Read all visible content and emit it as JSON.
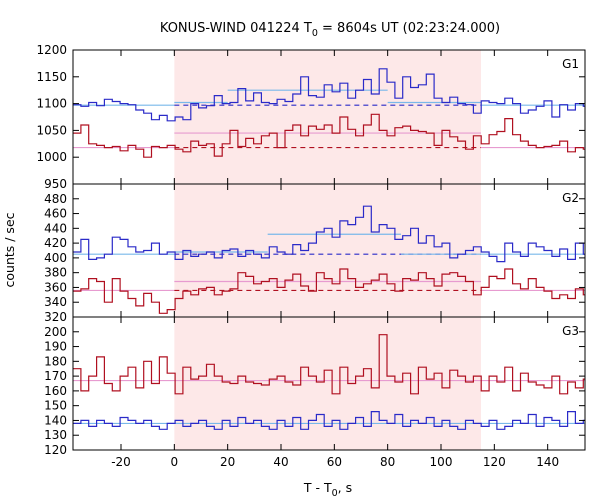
{
  "chart_data": {
    "type": "line",
    "title": "KONUS-WIND 041224 T",
    "title_sub": "0",
    "title_rest": " = 8604s UT (02:23:24.000)",
    "xlabel": "T - T",
    "xlabel_sub": "0",
    "xlabel_rest": ", s",
    "ylabel": "counts / sec",
    "xlim": [
      -38,
      154
    ],
    "xticks": [
      -20,
      0,
      20,
      40,
      60,
      80,
      100,
      120,
      140
    ],
    "bin_width": 2.944,
    "shaded_interval": [
      0,
      115
    ],
    "panels": [
      {
        "name": "G1",
        "ylim": [
          950,
          1200
        ],
        "yticks": [
          950,
          1000,
          1050,
          1100,
          1150,
          1200
        ],
        "series": [
          {
            "color": "#2a2ac8",
            "start": -38,
            "values": [
              1098,
              1095,
              1102,
              1096,
              1108,
              1104,
              1100,
              1098,
              1088,
              1082,
              1070,
              1078,
              1068,
              1075,
              1070,
              1100,
              1092,
              1096,
              1115,
              1100,
              1102,
              1128,
              1105,
              1120,
              1102,
              1100,
              1108,
              1104,
              1118,
              1150,
              1115,
              1112,
              1135,
              1122,
              1138,
              1110,
              1125,
              1145,
              1118,
              1165,
              1140,
              1110,
              1150,
              1130,
              1135,
              1155,
              1110,
              1102,
              1112,
              1100,
              1098,
              1082,
              1105,
              1102,
              1100,
              1110,
              1100,
              1082,
              1088,
              1095,
              1105,
              1075,
              1098,
              1088,
              1100,
              1095,
              1085,
              1098,
              1100,
              1068,
              1095,
              1082,
              1100,
              1104,
              1090
            ],
            "bg_level": 1097,
            "fit": [
              {
                "x0": -38,
                "x1": 0,
                "y": 1097,
                "style": "solid"
              },
              {
                "x0": 0,
                "x1": 115,
                "y": 1097,
                "style": "dashed"
              },
              {
                "x0": 115,
                "x1": 154,
                "y": 1097,
                "style": "solid"
              }
            ],
            "mean": [
              {
                "x0": 0,
                "x1": 20,
                "y": 1102
              },
              {
                "x0": 20,
                "x1": 80,
                "y": 1125
              },
              {
                "x0": 80,
                "x1": 115,
                "y": 1102
              }
            ]
          },
          {
            "color": "#b01020",
            "start": -38,
            "values": [
              1045,
              1060,
              1025,
              1022,
              1018,
              1020,
              1012,
              1022,
              1015,
              1000,
              1020,
              1018,
              1022,
              1015,
              1010,
              1030,
              1022,
              1025,
              1002,
              1025,
              1050,
              1020,
              1035,
              1025,
              1040,
              1045,
              1018,
              1050,
              1060,
              1040,
              1058,
              1052,
              1060,
              1045,
              1075,
              1052,
              1040,
              1060,
              1080,
              1050,
              1040,
              1055,
              1058,
              1050,
              1048,
              1045,
              1022,
              1050,
              1038,
              1030,
              1015,
              1040,
              1025,
              1042,
              1048,
              1072,
              1042,
              1030,
              1022,
              1018,
              1020,
              1022,
              1030,
              1010,
              1018,
              1015,
              1000,
              1020,
              1010,
              1018,
              1012,
              1000,
              1018,
              1015,
              1020
            ],
            "fit": [
              {
                "x0": -38,
                "x1": 0,
                "y": 1018,
                "style": "solid"
              },
              {
                "x0": 0,
                "x1": 115,
                "y": 1018,
                "style": "dashed"
              },
              {
                "x0": 115,
                "x1": 154,
                "y": 1018,
                "style": "solid"
              }
            ],
            "mean": [
              {
                "x0": 0,
                "x1": 115,
                "y": 1045
              }
            ]
          }
        ]
      },
      {
        "name": "G2",
        "ylim": [
          320,
          500
        ],
        "yticks": [
          320,
          340,
          360,
          380,
          400,
          420,
          440,
          460,
          480
        ],
        "series": [
          {
            "color": "#2a2ac8",
            "start": -38,
            "values": [
              408,
              425,
              398,
              400,
              405,
              428,
              425,
              415,
              408,
              410,
              420,
              405,
              408,
              398,
              410,
              402,
              405,
              408,
              400,
              410,
              412,
              402,
              410,
              405,
              400,
              415,
              408,
              405,
              418,
              410,
              420,
              435,
              440,
              428,
              450,
              445,
              455,
              470,
              435,
              445,
              440,
              425,
              430,
              440,
              420,
              430,
              415,
              420,
              400,
              405,
              410,
              415,
              408,
              402,
              395,
              420,
              408,
              402,
              420,
              415,
              410,
              402,
              412,
              398,
              420,
              405,
              418,
              400,
              415,
              402,
              410,
              400,
              398,
              405,
              410
            ],
            "fit": [
              {
                "x0": -38,
                "x1": 0,
                "y": 405,
                "style": "solid"
              },
              {
                "x0": 0,
                "x1": 115,
                "y": 405,
                "style": "dashed"
              },
              {
                "x0": 115,
                "x1": 154,
                "y": 405,
                "style": "solid"
              }
            ],
            "mean": [
              {
                "x0": 0,
                "x1": 35,
                "y": 408
              },
              {
                "x0": 35,
                "x1": 85,
                "y": 432
              },
              {
                "x0": 85,
                "x1": 115,
                "y": 405
              }
            ]
          },
          {
            "color": "#b01020",
            "start": -38,
            "values": [
              355,
              358,
              372,
              368,
              340,
              372,
              355,
              345,
              335,
              352,
              340,
              325,
              330,
              345,
              355,
              350,
              358,
              360,
              350,
              355,
              358,
              380,
              375,
              365,
              368,
              372,
              360,
              370,
              378,
              362,
              355,
              380,
              372,
              365,
              385,
              372,
              360,
              365,
              370,
              378,
              365,
              355,
              372,
              370,
              380,
              372,
              362,
              378,
              380,
              375,
              368,
              350,
              360,
              375,
              372,
              385,
              365,
              358,
              372,
              360,
              355,
              345,
              350,
              345,
              358,
              350,
              345,
              352,
              348,
              360,
              345,
              352,
              355,
              340,
              358
            ],
            "fit": [
              {
                "x0": -38,
                "x1": 0,
                "y": 356,
                "style": "solid"
              },
              {
                "x0": 0,
                "x1": 115,
                "y": 356,
                "style": "dashed"
              },
              {
                "x0": 115,
                "x1": 154,
                "y": 356,
                "style": "solid"
              }
            ],
            "mean": [
              {
                "x0": 0,
                "x1": 115,
                "y": 368
              }
            ]
          }
        ]
      },
      {
        "name": "G3",
        "ylim": [
          120,
          210
        ],
        "yticks": [
          120,
          130,
          140,
          150,
          160,
          170,
          180,
          190,
          200
        ],
        "series": [
          {
            "color": "#b01020",
            "start": -38,
            "values": [
              175,
              160,
              170,
              183,
              165,
              160,
              170,
              176,
              162,
              180,
              165,
              183,
              172,
              158,
              176,
              168,
              170,
              178,
              170,
              166,
              165,
              170,
              166,
              165,
              164,
              168,
              170,
              166,
              164,
              176,
              170,
              166,
              174,
              158,
              176,
              165,
              170,
              175,
              162,
              198,
              170,
              166,
              172,
              158,
              176,
              168,
              172,
              162,
              174,
              170,
              166,
              170,
              160,
              170,
              166,
              176,
              160,
              172,
              166,
              164,
              162,
              170,
              158,
              166,
              162,
              168,
              170,
              160,
              168,
              164,
              170,
              166,
              168,
              164,
              168
            ],
            "fit": [
              {
                "x0": -38,
                "x1": 154,
                "y": 167,
                "style": "solid"
              }
            ],
            "mean": []
          },
          {
            "color": "#2a2ac8",
            "start": -38,
            "values": [
              138,
              140,
              136,
              140,
              138,
              136,
              142,
              140,
              138,
              140,
              136,
              134,
              138,
              140,
              136,
              138,
              140,
              136,
              134,
              140,
              136,
              142,
              138,
              140,
              136,
              134,
              140,
              136,
              142,
              134,
              140,
              144,
              136,
              140,
              134,
              138,
              142,
              136,
              146,
              140,
              138,
              144,
              136,
              140,
              138,
              142,
              136,
              140,
              136,
              134,
              140,
              138,
              136,
              140,
              134,
              136,
              140,
              138,
              144,
              136,
              142,
              140,
              136,
              146,
              138,
              140,
              136,
              142,
              138,
              140,
              134,
              138,
              148,
              136,
              138
            ],
            "fit": [
              {
                "x0": -38,
                "x1": 154,
                "y": 138,
                "style": "solid"
              }
            ],
            "mean": []
          }
        ]
      }
    ]
  }
}
